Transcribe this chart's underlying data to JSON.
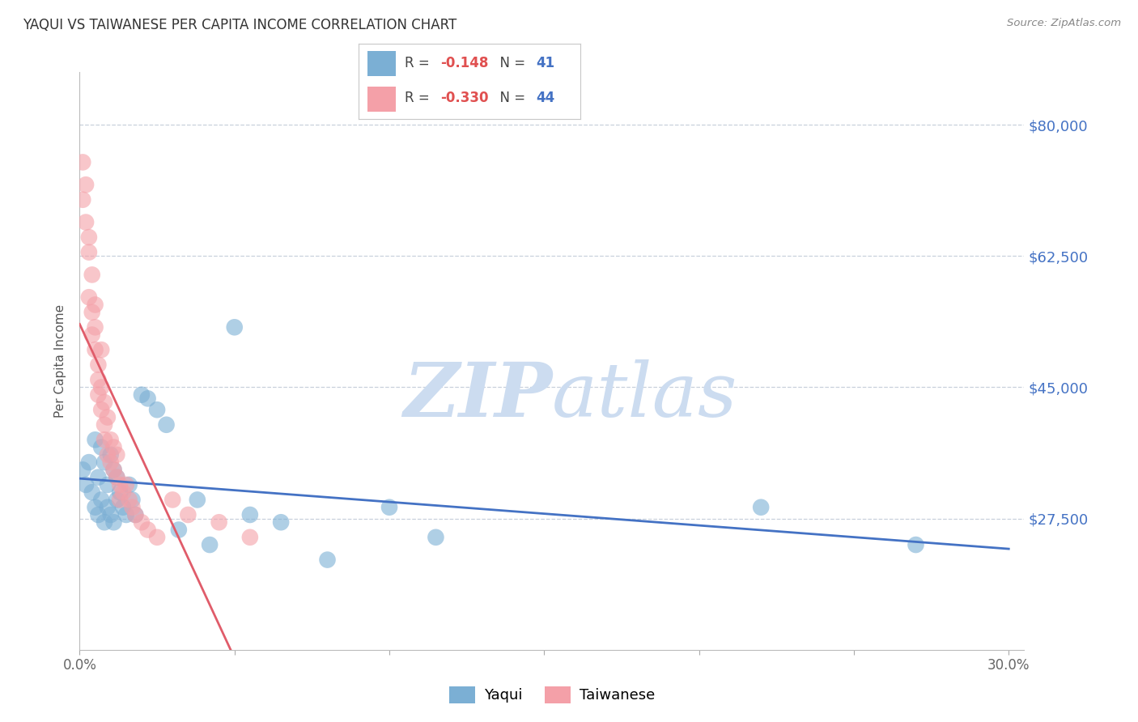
{
  "title": "YAQUI VS TAIWANESE PER CAPITA INCOME CORRELATION CHART",
  "source": "Source: ZipAtlas.com",
  "ylabel": "Per Capita Income",
  "xlim": [
    0.0,
    0.305
  ],
  "ylim": [
    10000,
    87000
  ],
  "yticks": [
    27500,
    45000,
    62500,
    80000
  ],
  "ytick_labels_right": [
    "$27,500",
    "$45,000",
    "$62,500",
    "$80,000"
  ],
  "xtick_positions": [
    0.0,
    0.05,
    0.1,
    0.15,
    0.2,
    0.25,
    0.3
  ],
  "xtick_labels": [
    "0.0%",
    "",
    "",
    "",
    "",
    "",
    "30.0%"
  ],
  "legend_R_yaqui": "-0.148",
  "legend_N_yaqui": "41",
  "legend_R_taiwanese": "-0.330",
  "legend_N_taiwanese": "44",
  "yaqui_color": "#7bafd4",
  "taiwanese_color": "#f4a0a8",
  "yaqui_line_color": "#4472c4",
  "taiwanese_line_color": "#e05c6a",
  "watermark_ZIP_color": "#ccdcf0",
  "watermark_atlas_color": "#ccdcf0",
  "background_color": "#ffffff",
  "grid_color": "#c8d0dc",
  "right_label_color": "#4472c4",
  "yaqui_x": [
    0.001,
    0.002,
    0.003,
    0.004,
    0.005,
    0.005,
    0.006,
    0.006,
    0.007,
    0.007,
    0.008,
    0.008,
    0.009,
    0.009,
    0.01,
    0.01,
    0.011,
    0.011,
    0.012,
    0.012,
    0.013,
    0.014,
    0.015,
    0.016,
    0.017,
    0.018,
    0.02,
    0.022,
    0.025,
    0.028,
    0.032,
    0.038,
    0.042,
    0.05,
    0.055,
    0.065,
    0.08,
    0.1,
    0.115,
    0.22,
    0.27
  ],
  "yaqui_y": [
    34000,
    32000,
    35000,
    31000,
    29000,
    38000,
    33000,
    28000,
    37000,
    30000,
    35000,
    27000,
    32000,
    29000,
    36000,
    28000,
    34000,
    27000,
    33000,
    30000,
    31000,
    29000,
    28000,
    32000,
    30000,
    28000,
    44000,
    43500,
    42000,
    40000,
    26000,
    30000,
    24000,
    53000,
    28000,
    27000,
    22000,
    29000,
    25000,
    29000,
    24000
  ],
  "taiwanese_x": [
    0.001,
    0.001,
    0.002,
    0.002,
    0.003,
    0.003,
    0.003,
    0.004,
    0.004,
    0.004,
    0.005,
    0.005,
    0.005,
    0.006,
    0.006,
    0.006,
    0.007,
    0.007,
    0.007,
    0.008,
    0.008,
    0.008,
    0.009,
    0.009,
    0.01,
    0.01,
    0.011,
    0.011,
    0.012,
    0.012,
    0.013,
    0.013,
    0.014,
    0.015,
    0.016,
    0.017,
    0.018,
    0.02,
    0.022,
    0.025,
    0.03,
    0.035,
    0.045,
    0.055
  ],
  "taiwanese_y": [
    75000,
    70000,
    67000,
    72000,
    63000,
    57000,
    65000,
    55000,
    60000,
    52000,
    56000,
    50000,
    53000,
    48000,
    46000,
    44000,
    50000,
    42000,
    45000,
    43000,
    40000,
    38000,
    41000,
    36000,
    38000,
    35000,
    37000,
    34000,
    33000,
    36000,
    32000,
    30000,
    31000,
    32000,
    30000,
    29000,
    28000,
    27000,
    26000,
    25000,
    30000,
    28000,
    27000,
    25000
  ],
  "taiwanese_line_solid_end": 0.055,
  "taiwanese_line_dash_end": 0.15
}
